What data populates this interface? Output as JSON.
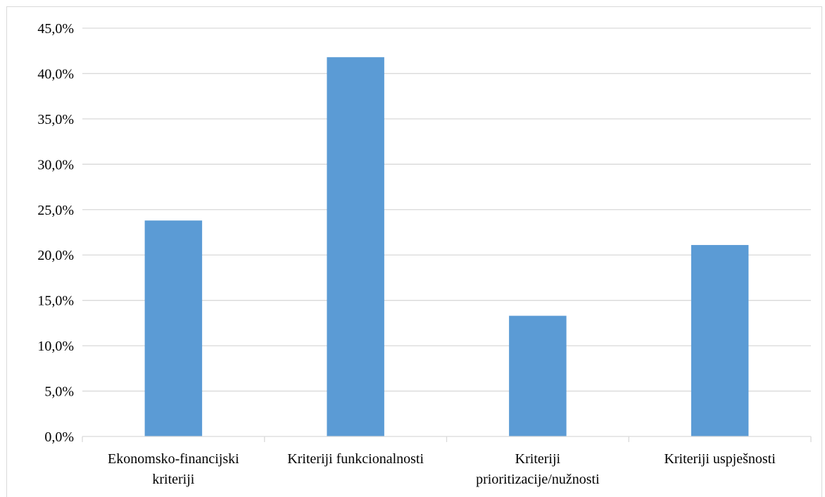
{
  "chart_data": {
    "type": "bar",
    "categories": [
      [
        "Ekonomsko-financijski",
        "kriteriji"
      ],
      [
        "Kriteriji funkcionalnosti"
      ],
      [
        "Kriteriji",
        "prioritizacije/nužnosti"
      ],
      [
        "Kriteriji uspješnosti"
      ]
    ],
    "values": [
      23.8,
      41.8,
      13.3,
      21.1
    ],
    "ylim": [
      0,
      45
    ],
    "y_ticks": [
      "0,0%",
      "5,0%",
      "10,0%",
      "15,0%",
      "20,0%",
      "25,0%",
      "30,0%",
      "35,0%",
      "40,0%",
      "45,0%"
    ],
    "y_tick_values": [
      0,
      5,
      10,
      15,
      20,
      25,
      30,
      35,
      40,
      45
    ],
    "title": "",
    "xlabel": "",
    "ylabel": "",
    "grid": true,
    "legend": "none",
    "colors": {
      "bar": "#5b9bd5",
      "grid": "#d9d9d9",
      "axis": "#d9d9d9",
      "text": "#000000"
    }
  }
}
